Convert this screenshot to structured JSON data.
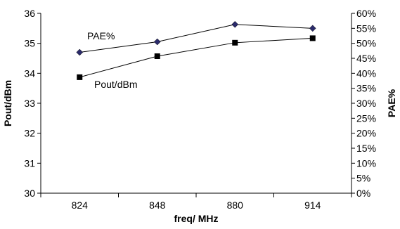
{
  "chart_data": {
    "type": "line",
    "categories": [
      "824",
      "848",
      "880",
      "914"
    ],
    "xlabel": "freq/ MHz",
    "ylabel_left": "Pout/dBm",
    "ylabel_right": "PAE%",
    "ylim_left": [
      30,
      36
    ],
    "ylim_right": [
      0,
      60
    ],
    "yticks_left": [
      "30",
      "31",
      "32",
      "33",
      "34",
      "35",
      "36"
    ],
    "yticks_right": [
      "0%",
      "5%",
      "10%",
      "15%",
      "20%",
      "25%",
      "30%",
      "35%",
      "40%",
      "45%",
      "50%",
      "55%",
      "60%"
    ],
    "grid": false,
    "series": [
      {
        "name": "PAE%",
        "axis": "right",
        "marker": "diamond",
        "color": "#2b2b6b",
        "values": [
          47,
          50.5,
          56.3,
          55
        ]
      },
      {
        "name": "Pout/dBm",
        "axis": "left",
        "marker": "square",
        "color": "#000000",
        "values": [
          33.87,
          34.57,
          35.02,
          35.17
        ]
      }
    ]
  }
}
